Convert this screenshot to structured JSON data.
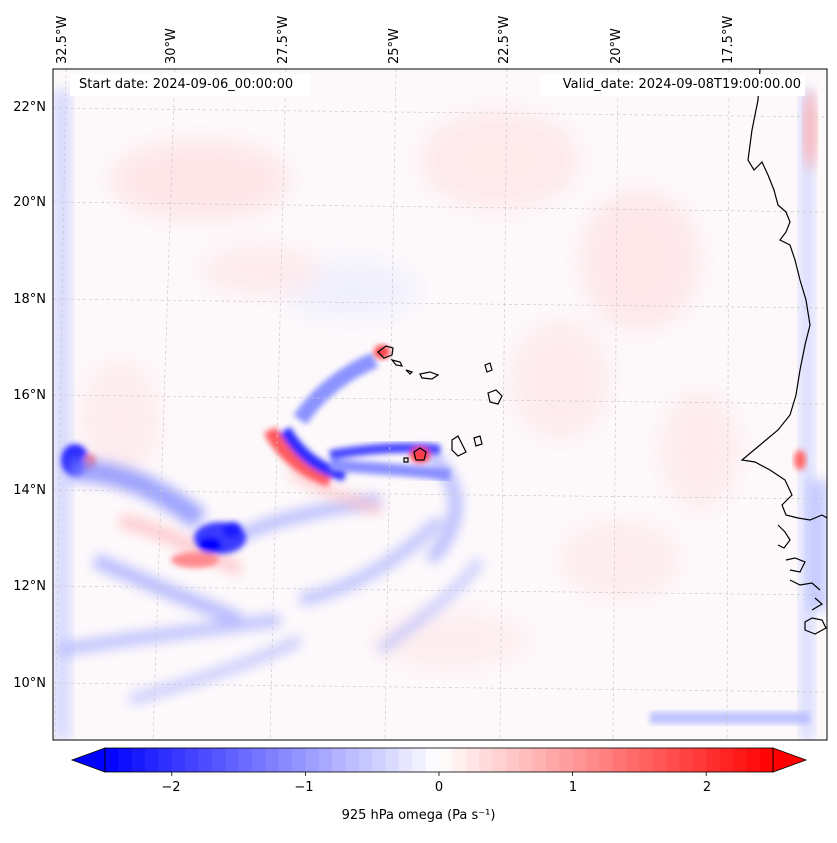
{
  "map": {
    "header_left": "Start date: 2024-09-06_00:00:00",
    "header_right": "Valid_date: 2024-09-08T19:00:00.00",
    "lon_labels": [
      "32.5°W",
      "30°W",
      "27.5°W",
      "25°W",
      "22.5°W",
      "20°W",
      "17.5°W"
    ],
    "lat_labels": [
      "22°N",
      "20°N",
      "18°N",
      "16°N",
      "14°N",
      "12°N",
      "10°N"
    ],
    "extent": {
      "lon_min": -32.6,
      "lon_max": -15.6,
      "lat_min": 8.8,
      "lat_max": 22.8
    }
  },
  "colorbar": {
    "label": "925 hPa omega (Pa s⁻¹)",
    "ticks": [
      "−2",
      "−1",
      "0",
      "1",
      "2"
    ],
    "range": [
      -2.5,
      2.5
    ],
    "colors": {
      "negative": "#0000ff",
      "zero": "#ffffff",
      "positive": "#ff0000"
    }
  }
}
